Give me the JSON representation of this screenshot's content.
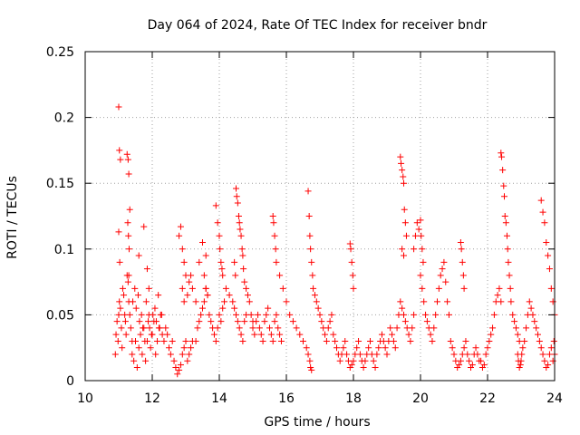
{
  "chart_data": {
    "type": "scatter",
    "title": "Day 064 of 2024, Rate Of TEC Index for receiver bndr",
    "xlabel": "GPS time / hours",
    "ylabel": "ROTI / TECUs",
    "xlim": [
      10,
      24
    ],
    "ylim": [
      0,
      0.25
    ],
    "xticks": [
      10,
      12,
      14,
      16,
      18,
      20,
      22,
      24
    ],
    "xtick_labels": [
      "10",
      "12",
      "14",
      "16",
      "18",
      "20",
      "22",
      "24"
    ],
    "yticks": [
      0,
      0.05,
      0.1,
      0.15,
      0.2,
      0.25
    ],
    "ytick_labels": [
      "0",
      "0.05",
      "0.1",
      "0.15",
      "0.2",
      "0.25"
    ],
    "grid": true,
    "marker": "+",
    "color": "#ff0000",
    "series": [
      {
        "x": [
          10.9,
          10.92,
          10.95,
          10.98,
          11.0,
          11.02,
          11.05,
          11.08,
          11.1,
          11.12,
          11.15,
          11.18,
          11.2,
          11.22,
          11.25,
          11.28,
          11.3,
          11.33,
          11.36,
          11.4,
          11.0,
          11.02,
          11.05,
          11.0,
          11.03,
          11.25,
          11.28,
          11.3,
          11.33,
          11.27,
          11.29,
          11.31,
          11.3,
          11.6,
          11.75,
          11.85,
          11.9,
          11.4,
          11.45,
          11.5,
          11.55,
          11.6,
          11.65,
          11.7,
          11.75,
          11.8,
          11.85,
          11.9,
          11.95,
          12.0,
          12.05,
          12.1,
          12.15,
          12.2,
          12.25,
          12.3,
          11.42,
          11.48,
          11.52,
          11.58,
          11.62,
          11.68,
          11.72,
          11.78,
          11.82,
          11.88,
          11.92,
          11.98,
          12.02,
          12.08,
          12.12,
          12.18,
          12.22,
          12.28,
          12.35,
          12.4,
          12.45,
          12.5,
          12.55,
          12.6,
          12.65,
          12.7,
          12.75,
          12.8,
          12.85,
          12.9,
          12.95,
          13.0,
          13.05,
          13.1,
          13.15,
          13.2,
          12.8,
          12.85,
          12.9,
          12.95,
          13.0,
          12.9,
          12.95,
          13.05,
          13.1,
          13.15,
          13.2,
          13.3,
          13.4,
          13.5,
          13.6,
          13.55,
          13.6,
          13.65,
          13.3,
          13.35,
          13.4,
          13.45,
          13.5,
          13.55,
          13.6,
          13.65,
          13.7,
          13.75,
          13.8,
          13.85,
          13.9,
          13.95,
          14.0,
          14.05,
          14.1,
          14.15,
          13.9,
          13.95,
          14.0,
          14.02,
          14.05,
          14.08,
          14.1,
          14.2,
          14.3,
          14.4,
          14.45,
          14.5,
          14.55,
          14.6,
          14.65,
          14.7,
          14.75,
          14.8,
          14.5,
          14.52,
          14.55,
          14.58,
          14.6,
          14.62,
          14.65,
          14.68,
          14.45,
          14.48,
          14.7,
          14.72,
          14.75,
          14.8,
          14.85,
          14.9,
          14.95,
          15.0,
          15.0,
          15.05,
          15.1,
          15.15,
          15.2,
          15.25,
          15.3,
          15.35,
          15.4,
          15.45,
          15.5,
          15.55,
          15.6,
          15.65,
          15.7,
          15.75,
          15.8,
          15.85,
          15.6,
          15.62,
          15.65,
          15.68,
          15.7,
          15.8,
          15.9,
          16.0,
          16.1,
          16.2,
          16.3,
          16.4,
          16.5,
          16.6,
          16.65,
          16.7,
          16.72,
          16.75,
          16.65,
          16.68,
          16.7,
          16.72,
          16.75,
          16.78,
          16.8,
          16.85,
          16.9,
          16.95,
          17.0,
          17.05,
          17.1,
          17.15,
          17.2,
          17.25,
          17.3,
          17.35,
          17.4,
          17.45,
          17.5,
          17.55,
          17.6,
          17.65,
          17.7,
          17.75,
          17.8,
          17.85,
          17.9,
          17.95,
          18.0,
          18.05,
          18.1,
          18.15,
          18.2,
          18.25,
          17.9,
          17.92,
          17.95,
          17.98,
          18.0,
          18.3,
          18.35,
          18.4,
          18.45,
          18.5,
          18.55,
          18.6,
          18.65,
          18.7,
          18.75,
          18.8,
          18.85,
          18.9,
          18.95,
          19.0,
          19.05,
          19.1,
          19.15,
          19.2,
          19.25,
          19.3,
          19.35,
          19.4,
          19.45,
          19.5,
          19.55,
          19.6,
          19.65,
          19.7,
          19.75,
          19.8,
          19.4,
          19.42,
          19.45,
          19.48,
          19.5,
          19.52,
          19.55,
          19.58,
          19.45,
          19.5,
          19.8,
          19.85,
          19.9,
          19.95,
          20.0,
          20.02,
          20.05,
          20.08,
          20.0,
          20.05,
          20.1,
          20.15,
          20.2,
          20.25,
          20.3,
          20.35,
          20.4,
          20.45,
          20.5,
          20.55,
          20.6,
          20.65,
          20.7,
          20.75,
          20.8,
          20.85,
          20.9,
          20.95,
          21.0,
          21.05,
          21.1,
          21.15,
          21.2,
          21.25,
          21.3,
          21.35,
          21.4,
          21.45,
          21.5,
          21.55,
          21.6,
          21.65,
          21.7,
          21.75,
          21.2,
          21.22,
          21.25,
          21.28,
          21.3,
          21.8,
          21.85,
          21.9,
          21.95,
          22.0,
          22.05,
          22.1,
          22.15,
          22.2,
          22.25,
          22.3,
          22.35,
          22.4,
          22.4,
          22.42,
          22.45,
          22.48,
          22.5,
          22.52,
          22.55,
          22.58,
          22.6,
          22.62,
          22.65,
          22.68,
          22.7,
          22.75,
          22.8,
          22.85,
          22.9,
          22.95,
          22.9,
          22.92,
          22.95,
          22.98,
          23.0,
          23.02,
          23.05,
          23.1,
          23.15,
          23.2,
          23.25,
          23.3,
          23.35,
          23.4,
          23.45,
          23.5,
          23.55,
          23.6,
          23.6,
          23.65,
          23.7,
          23.75,
          23.8,
          23.85,
          23.9,
          23.95,
          24.0,
          23.65,
          23.7,
          23.75,
          23.8,
          23.85,
          23.9,
          23.95,
          23.98,
          24.0
        ],
        "y": [
          0.02,
          0.035,
          0.045,
          0.03,
          0.05,
          0.06,
          0.055,
          0.04,
          0.025,
          0.07,
          0.065,
          0.05,
          0.045,
          0.035,
          0.08,
          0.075,
          0.06,
          0.05,
          0.04,
          0.03,
          0.208,
          0.175,
          0.168,
          0.113,
          0.09,
          0.172,
          0.168,
          0.157,
          0.13,
          0.12,
          0.11,
          0.1,
          0.08,
          0.095,
          0.117,
          0.085,
          0.07,
          0.02,
          0.015,
          0.03,
          0.01,
          0.025,
          0.035,
          0.02,
          0.04,
          0.015,
          0.03,
          0.05,
          0.025,
          0.035,
          0.045,
          0.02,
          0.03,
          0.04,
          0.05,
          0.035,
          0.06,
          0.07,
          0.055,
          0.065,
          0.045,
          0.05,
          0.04,
          0.03,
          0.06,
          0.045,
          0.04,
          0.035,
          0.05,
          0.055,
          0.045,
          0.065,
          0.04,
          0.05,
          0.03,
          0.04,
          0.035,
          0.025,
          0.02,
          0.03,
          0.015,
          0.01,
          0.005,
          0.008,
          0.012,
          0.02,
          0.025,
          0.03,
          0.015,
          0.02,
          0.025,
          0.03,
          0.11,
          0.117,
          0.1,
          0.09,
          0.08,
          0.07,
          0.06,
          0.065,
          0.075,
          0.08,
          0.07,
          0.06,
          0.09,
          0.105,
          0.095,
          0.08,
          0.07,
          0.065,
          0.03,
          0.04,
          0.045,
          0.05,
          0.055,
          0.06,
          0.07,
          0.065,
          0.05,
          0.045,
          0.04,
          0.035,
          0.03,
          0.04,
          0.05,
          0.045,
          0.055,
          0.06,
          0.133,
          0.12,
          0.11,
          0.1,
          0.09,
          0.085,
          0.08,
          0.07,
          0.065,
          0.06,
          0.055,
          0.05,
          0.045,
          0.04,
          0.035,
          0.03,
          0.045,
          0.05,
          0.146,
          0.14,
          0.135,
          0.125,
          0.12,
          0.115,
          0.11,
          0.1,
          0.09,
          0.08,
          0.095,
          0.085,
          0.075,
          0.07,
          0.065,
          0.06,
          0.05,
          0.045,
          0.04,
          0.035,
          0.045,
          0.05,
          0.04,
          0.035,
          0.03,
          0.045,
          0.05,
          0.055,
          0.04,
          0.035,
          0.03,
          0.045,
          0.05,
          0.04,
          0.035,
          0.03,
          0.125,
          0.12,
          0.11,
          0.1,
          0.09,
          0.08,
          0.07,
          0.06,
          0.05,
          0.045,
          0.04,
          0.035,
          0.03,
          0.025,
          0.02,
          0.015,
          0.01,
          0.008,
          0.144,
          0.125,
          0.11,
          0.1,
          0.09,
          0.08,
          0.07,
          0.065,
          0.06,
          0.055,
          0.05,
          0.045,
          0.04,
          0.035,
          0.03,
          0.04,
          0.045,
          0.05,
          0.035,
          0.03,
          0.025,
          0.02,
          0.015,
          0.02,
          0.025,
          0.03,
          0.02,
          0.015,
          0.01,
          0.012,
          0.015,
          0.02,
          0.025,
          0.03,
          0.02,
          0.015,
          0.104,
          0.1,
          0.09,
          0.08,
          0.07,
          0.01,
          0.015,
          0.02,
          0.025,
          0.03,
          0.02,
          0.015,
          0.01,
          0.02,
          0.025,
          0.03,
          0.035,
          0.03,
          0.025,
          0.02,
          0.03,
          0.04,
          0.035,
          0.03,
          0.025,
          0.04,
          0.05,
          0.06,
          0.055,
          0.05,
          0.045,
          0.04,
          0.035,
          0.03,
          0.04,
          0.05,
          0.17,
          0.165,
          0.16,
          0.155,
          0.15,
          0.13,
          0.12,
          0.11,
          0.1,
          0.095,
          0.1,
          0.11,
          0.12,
          0.115,
          0.122,
          0.11,
          0.1,
          0.09,
          0.08,
          0.07,
          0.06,
          0.05,
          0.045,
          0.04,
          0.035,
          0.03,
          0.04,
          0.05,
          0.06,
          0.07,
          0.08,
          0.085,
          0.09,
          0.075,
          0.06,
          0.05,
          0.03,
          0.025,
          0.02,
          0.015,
          0.01,
          0.012,
          0.015,
          0.02,
          0.025,
          0.03,
          0.02,
          0.015,
          0.01,
          0.012,
          0.02,
          0.025,
          0.02,
          0.015,
          0.105,
          0.1,
          0.09,
          0.08,
          0.07,
          0.015,
          0.01,
          0.012,
          0.02,
          0.025,
          0.03,
          0.035,
          0.04,
          0.05,
          0.06,
          0.065,
          0.07,
          0.06,
          0.173,
          0.17,
          0.16,
          0.148,
          0.14,
          0.125,
          0.12,
          0.11,
          0.1,
          0.09,
          0.08,
          0.07,
          0.06,
          0.05,
          0.045,
          0.04,
          0.035,
          0.03,
          0.02,
          0.015,
          0.01,
          0.012,
          0.015,
          0.02,
          0.025,
          0.03,
          0.04,
          0.05,
          0.06,
          0.055,
          0.05,
          0.045,
          0.04,
          0.035,
          0.03,
          0.025,
          0.137,
          0.128,
          0.12,
          0.105,
          0.095,
          0.085,
          0.07,
          0.06,
          0.05,
          0.02,
          0.015,
          0.01,
          0.012,
          0.02,
          0.025,
          0.015,
          0.03,
          0.02
        ]
      }
    ]
  }
}
